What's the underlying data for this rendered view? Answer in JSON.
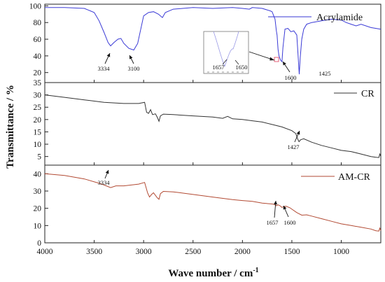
{
  "chart_data": {
    "type": "line",
    "xlabel": "Wave number / cm",
    "xlabel_sup": "-1",
    "ylabel": "Transmittance / %",
    "xlim": [
      4000,
      600
    ],
    "x_ticks": [
      4000,
      3500,
      3000,
      2500,
      2000,
      1500,
      1000
    ],
    "panels": [
      {
        "ylim": [
          8,
          102
        ],
        "y_ticks": [
          20,
          40,
          60,
          80,
          100
        ],
        "color": "#3a3ad6",
        "series": [
          {
            "name": "Acrylamide",
            "x": [
              4000,
              3800,
              3600,
              3500,
              3450,
              3400,
              3360,
              3334,
              3300,
              3260,
              3230,
              3200,
              3150,
              3100,
              3060,
              3000,
              2950,
              2900,
              2850,
              2810,
              2780,
              2700,
              2500,
              2300,
              2100,
              2000,
              1930,
              1900,
              1800,
              1720,
              1700,
              1670,
              1657,
              1650,
              1640,
              1630,
              1615,
              1600,
              1590,
              1570,
              1540,
              1510,
              1480,
              1450,
              1425,
              1415,
              1400,
              1380,
              1350,
              1300,
              1200,
              1100,
              1000,
              950,
              900,
              850,
              800,
              700,
              600
            ],
            "y": [
              98,
              98,
              97,
              92,
              82,
              68,
              56,
              52,
              56,
              60,
              61,
              55,
              49,
              47,
              55,
              88,
              92,
              93,
              90,
              86,
              92,
              96,
              98,
              97,
              98,
              97,
              96,
              98,
              97,
              94,
              93,
              84,
              70,
              65,
              48,
              40,
              35,
              33,
              50,
              72,
              73,
              69,
              70,
              65,
              18,
              38,
              60,
              72,
              78,
              80,
              82,
              84,
              83,
              80,
              78,
              76,
              78,
              74,
              72
            ]
          }
        ],
        "annotations": [
          "3334",
          "3100",
          "1600",
          "1425"
        ],
        "inset_annotations": [
          "1657",
          "1650"
        ]
      },
      {
        "ylim": [
          1.5,
          35
        ],
        "y_ticks": [
          5,
          10,
          15,
          20,
          25,
          30,
          35
        ],
        "color": "#333333",
        "series": [
          {
            "name": "CR",
            "x": [
              4000,
              3800,
              3600,
              3400,
              3200,
              3050,
              2990,
              2970,
              2950,
              2930,
              2910,
              2880,
              2860,
              2845,
              2830,
              2800,
              2700,
              2500,
              2300,
              2200,
              2150,
              2100,
              2000,
              1900,
              1800,
              1700,
              1600,
              1500,
              1460,
              1440,
              1427,
              1410,
              1380,
              1300,
              1200,
              1100,
              1000,
              900,
              800,
              700,
              650,
              620,
              610,
              600
            ],
            "y": [
              30,
              29,
              28,
              27,
              26.5,
              26.5,
              27,
              23,
              22.5,
              24,
              22,
              22.3,
              20.8,
              19.3,
              21.5,
              22.2,
              22,
              21.5,
              21,
              20.5,
              21.3,
              20.3,
              20,
              19.5,
              19,
              18,
              17,
              15.5,
              14.3,
              12,
              11,
              11.8,
              12.2,
              10.8,
              9.5,
              8.5,
              7.5,
              7,
              6,
              5,
              4.7,
              4.6,
              6,
              5
            ]
          }
        ],
        "annotations": [
          "1427"
        ]
      },
      {
        "ylim": [
          0,
          45
        ],
        "y_ticks": [
          0,
          10,
          20,
          30,
          40
        ],
        "color": "#b24a33",
        "series": [
          {
            "name": "AM-CR",
            "x": [
              4000,
              3800,
              3600,
              3450,
              3400,
              3334,
              3280,
              3200,
              3050,
              2990,
              2960,
              2940,
              2920,
              2900,
              2880,
              2860,
              2845,
              2830,
              2800,
              2700,
              2500,
              2300,
              2100,
              2000,
              1900,
              1800,
              1700,
              1680,
              1657,
              1640,
              1620,
              1600,
              1580,
              1560,
              1520,
              1500,
              1450,
              1400,
              1350,
              1300,
              1200,
              1100,
              1000,
              900,
              800,
              700,
              650,
              620,
              610,
              600
            ],
            "y": [
              40,
              39,
              37,
              34.5,
              33.5,
              32,
              33,
              33,
              34,
              35,
              29,
              26.5,
              28,
              29,
              27.5,
              26,
              25.2,
              28.5,
              29.8,
              29.5,
              28,
              26.5,
              25,
              24.5,
              24,
              23,
              22.5,
              22.3,
              21.5,
              22,
              21.5,
              20.5,
              21,
              21.2,
              20.3,
              19.5,
              17.5,
              16,
              16.2,
              15.5,
              14,
              12.5,
              11,
              10,
              9,
              8,
              7,
              6.8,
              8.5,
              7
            ]
          }
        ],
        "annotations": [
          "3334",
          "1657",
          "1600"
        ]
      }
    ]
  }
}
